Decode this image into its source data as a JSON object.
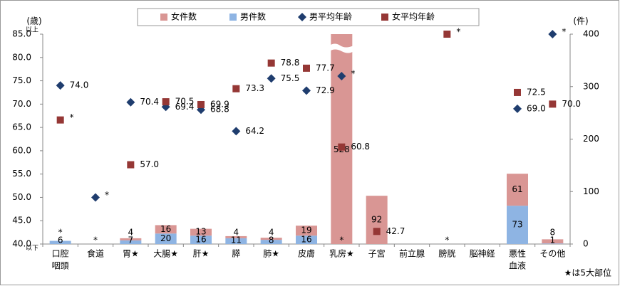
{
  "chart_data": {
    "type": "bar_scatter_combo",
    "ylabel": "(歳)",
    "y2label": "(件)",
    "ylim": [
      40,
      85
    ],
    "yticks": [
      {
        "value": 40,
        "label": "40.0"
      },
      {
        "value": 45,
        "label": "45.0"
      },
      {
        "value": 50,
        "label": "50.0"
      },
      {
        "value": 55,
        "label": "55.0"
      },
      {
        "value": 60,
        "label": "60.0"
      },
      {
        "value": 65,
        "label": "65.0"
      },
      {
        "value": 70,
        "label": "70.0"
      },
      {
        "value": 75,
        "label": "75.0"
      },
      {
        "value": 80,
        "label": "80.0"
      },
      {
        "value": 85,
        "label": "85.0"
      }
    ],
    "y2lim": [
      0,
      400
    ],
    "y2ticks": [
      0,
      100,
      200,
      300,
      400
    ],
    "ytick_notes": [
      "以下",
      "以上"
    ],
    "note": "★は5大部位",
    "categories": [
      [
        "口腔",
        "咽頭"
      ],
      [
        "食道"
      ],
      [
        "胃★"
      ],
      [
        "大腸★"
      ],
      [
        "肝★"
      ],
      [
        "膵"
      ],
      [
        "肺★"
      ],
      [
        "皮膚"
      ],
      [
        "乳房★"
      ],
      [
        "子宮"
      ],
      [
        "前立腺"
      ],
      [
        "膀胱"
      ],
      [
        "脳神経"
      ],
      [
        "悪性",
        "血液"
      ],
      [
        "その他"
      ]
    ],
    "series": [
      {
        "name": "女件数",
        "color": "#d99694",
        "axis": "y2",
        "kind": "bar",
        "values": [
          null,
          null,
          4,
          16,
          13,
          4,
          4,
          19,
          528,
          92,
          null,
          null,
          null,
          61,
          8
        ],
        "value_labels": [
          "*",
          null,
          "4",
          "16",
          "13",
          "4",
          "4",
          "19",
          "528",
          "92",
          null,
          null,
          null,
          "61",
          "8"
        ]
      },
      {
        "name": "男件数",
        "color": "#8eb4e3",
        "axis": "y2",
        "kind": "bar",
        "values": [
          6,
          null,
          7,
          20,
          16,
          11,
          8,
          16,
          null,
          null,
          null,
          null,
          null,
          73,
          1
        ],
        "value_labels": [
          "6",
          "*",
          "7",
          "20",
          "16",
          "11",
          "8",
          "16",
          "*",
          null,
          null,
          "*",
          null,
          "73",
          "1"
        ]
      },
      {
        "name": "男平均年齢",
        "color": "#1f3d6e",
        "axis": "y",
        "kind": "diamond",
        "values": [
          74.0,
          50.0,
          70.4,
          69.4,
          68.8,
          64.2,
          75.5,
          72.9,
          76.0,
          null,
          null,
          null,
          null,
          69.0,
          85.0
        ],
        "value_labels": [
          "74.0",
          "*",
          "70.4",
          "69.4",
          "68.8",
          "64.2",
          "75.5",
          "72.9",
          "*",
          null,
          null,
          null,
          null,
          "69.0",
          "*"
        ]
      },
      {
        "name": "女平均年齢",
        "color": "#953735",
        "axis": "y",
        "kind": "square",
        "values": [
          66.6,
          null,
          57.0,
          70.5,
          69.9,
          73.3,
          78.8,
          77.7,
          60.8,
          42.7,
          null,
          85.0,
          null,
          72.5,
          70.0
        ],
        "value_labels": [
          "*",
          null,
          "57.0",
          "70.5",
          "69.9",
          "73.3",
          "78.8",
          "77.7",
          "60.8",
          "42.7",
          null,
          "*",
          null,
          "72.5",
          "70.0"
        ]
      }
    ]
  }
}
